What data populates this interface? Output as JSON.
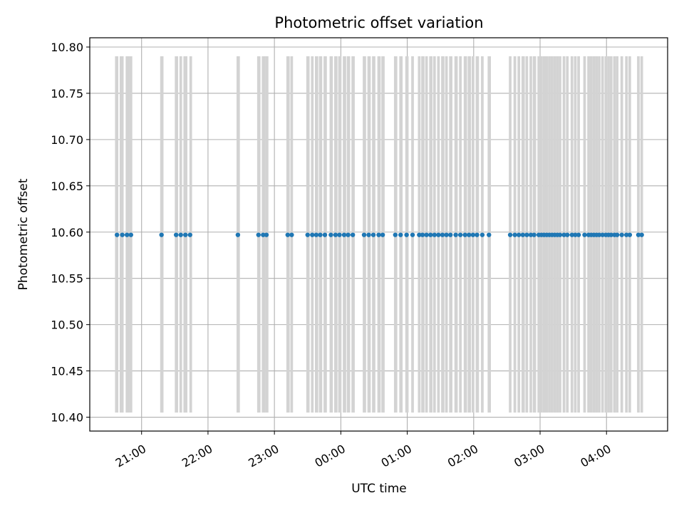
{
  "chart_data": {
    "type": "scatter",
    "title": "Photometric offset variation",
    "xlabel": "UTC time",
    "ylabel": "Photometric offset",
    "x_tick_labels": [
      "21:00",
      "22:00",
      "23:00",
      "00:00",
      "01:00",
      "02:00",
      "03:00",
      "04:00"
    ],
    "x_tick_hours": [
      21,
      22,
      23,
      24,
      25,
      26,
      27,
      28
    ],
    "xlim_hours": [
      20.22,
      28.92
    ],
    "y_ticks": [
      "10.40",
      "10.45",
      "10.50",
      "10.55",
      "10.60",
      "10.65",
      "10.70",
      "10.75",
      "10.80"
    ],
    "ylim": [
      10.385,
      10.81
    ],
    "grid": true,
    "colors": {
      "points": "#1f77b4",
      "bands": "#d3d3d3",
      "grid": "#b0b0b0"
    },
    "band_range": [
      10.405,
      10.79
    ],
    "series": [
      {
        "offset_value": 10.597,
        "x_hours": [
          20.63,
          20.71,
          20.78,
          20.84,
          21.3,
          21.52,
          21.59,
          21.66,
          21.73,
          22.45,
          22.76,
          22.83,
          22.88,
          23.2,
          23.26,
          23.5,
          23.57,
          23.63,
          23.69,
          23.76,
          23.85,
          23.92,
          23.98,
          24.05,
          24.11,
          24.18,
          24.35,
          24.42,
          24.49,
          24.57,
          24.63,
          24.82,
          24.9,
          24.99,
          25.08,
          25.18,
          25.23,
          25.29,
          25.35,
          25.41,
          25.47,
          25.53,
          25.59,
          25.65,
          25.73,
          25.8,
          25.87,
          25.93,
          25.99,
          26.05,
          26.13,
          26.23,
          26.55,
          26.62,
          26.68,
          26.74,
          26.8,
          26.86,
          26.91,
          26.98,
          27.02,
          27.06,
          27.1,
          27.14,
          27.18,
          27.22,
          27.26,
          27.3,
          27.36,
          27.41,
          27.48,
          27.53,
          27.58,
          27.67,
          27.73,
          27.77,
          27.81,
          27.85,
          27.89,
          27.94,
          27.99,
          28.03,
          28.07,
          28.12,
          28.16,
          28.23,
          28.3,
          28.35,
          28.48,
          28.53
        ]
      }
    ],
    "bands": [
      [
        20.6,
        20.65
      ],
      [
        20.67,
        20.73
      ],
      [
        20.76,
        20.82
      ],
      [
        20.82,
        20.86
      ],
      [
        21.28,
        21.33
      ],
      [
        21.5,
        21.55
      ],
      [
        21.57,
        21.61
      ],
      [
        21.63,
        21.69
      ],
      [
        21.72,
        21.76
      ],
      [
        22.43,
        22.48
      ],
      [
        22.74,
        22.79
      ],
      [
        22.81,
        22.86
      ],
      [
        22.86,
        22.91
      ],
      [
        23.18,
        23.23
      ],
      [
        23.24,
        23.28
      ],
      [
        23.48,
        23.53
      ],
      [
        23.55,
        23.59
      ],
      [
        23.61,
        23.66
      ],
      [
        23.67,
        23.72
      ],
      [
        23.74,
        23.79
      ],
      [
        23.83,
        23.88
      ],
      [
        23.9,
        23.95
      ],
      [
        23.96,
        24.01
      ],
      [
        24.03,
        24.08
      ],
      [
        24.09,
        24.14
      ],
      [
        24.16,
        24.21
      ],
      [
        24.33,
        24.38
      ],
      [
        24.4,
        24.45
      ],
      [
        24.47,
        24.52
      ],
      [
        24.55,
        24.6
      ],
      [
        24.61,
        24.66
      ],
      [
        24.8,
        24.85
      ],
      [
        24.88,
        24.93
      ],
      [
        24.97,
        25.02
      ],
      [
        25.06,
        25.1
      ],
      [
        25.16,
        25.2
      ],
      [
        25.21,
        25.26
      ],
      [
        25.27,
        25.31
      ],
      [
        25.33,
        25.38
      ],
      [
        25.39,
        25.43
      ],
      [
        25.45,
        25.49
      ],
      [
        25.51,
        25.56
      ],
      [
        25.57,
        25.61
      ],
      [
        25.63,
        25.68
      ],
      [
        25.71,
        25.76
      ],
      [
        25.78,
        25.82
      ],
      [
        25.85,
        25.9
      ],
      [
        25.91,
        25.96
      ],
      [
        25.97,
        26.01
      ],
      [
        26.03,
        26.08
      ],
      [
        26.11,
        26.15
      ],
      [
        26.21,
        26.26
      ],
      [
        26.53,
        26.57
      ],
      [
        26.6,
        26.64
      ],
      [
        26.66,
        26.7
      ],
      [
        26.72,
        26.77
      ],
      [
        26.78,
        26.82
      ],
      [
        26.84,
        26.88
      ],
      [
        26.89,
        26.94
      ],
      [
        26.96,
        27.0
      ],
      [
        27.0,
        27.04
      ],
      [
        27.04,
        27.08
      ],
      [
        27.08,
        27.12
      ],
      [
        27.12,
        27.16
      ],
      [
        27.16,
        27.2
      ],
      [
        27.2,
        27.24
      ],
      [
        27.24,
        27.28
      ],
      [
        27.28,
        27.32
      ],
      [
        27.34,
        27.38
      ],
      [
        27.39,
        27.43
      ],
      [
        27.46,
        27.5
      ],
      [
        27.51,
        27.55
      ],
      [
        27.56,
        27.6
      ],
      [
        27.65,
        27.69
      ],
      [
        27.71,
        27.75
      ],
      [
        27.75,
        27.79
      ],
      [
        27.79,
        27.83
      ],
      [
        27.83,
        27.87
      ],
      [
        27.87,
        27.91
      ],
      [
        27.92,
        27.96
      ],
      [
        27.97,
        28.01
      ],
      [
        28.01,
        28.05
      ],
      [
        28.05,
        28.09
      ],
      [
        28.1,
        28.14
      ],
      [
        28.14,
        28.18
      ],
      [
        28.21,
        28.25
      ],
      [
        28.28,
        28.32
      ],
      [
        28.33,
        28.37
      ],
      [
        28.46,
        28.5
      ],
      [
        28.51,
        28.55
      ]
    ]
  }
}
